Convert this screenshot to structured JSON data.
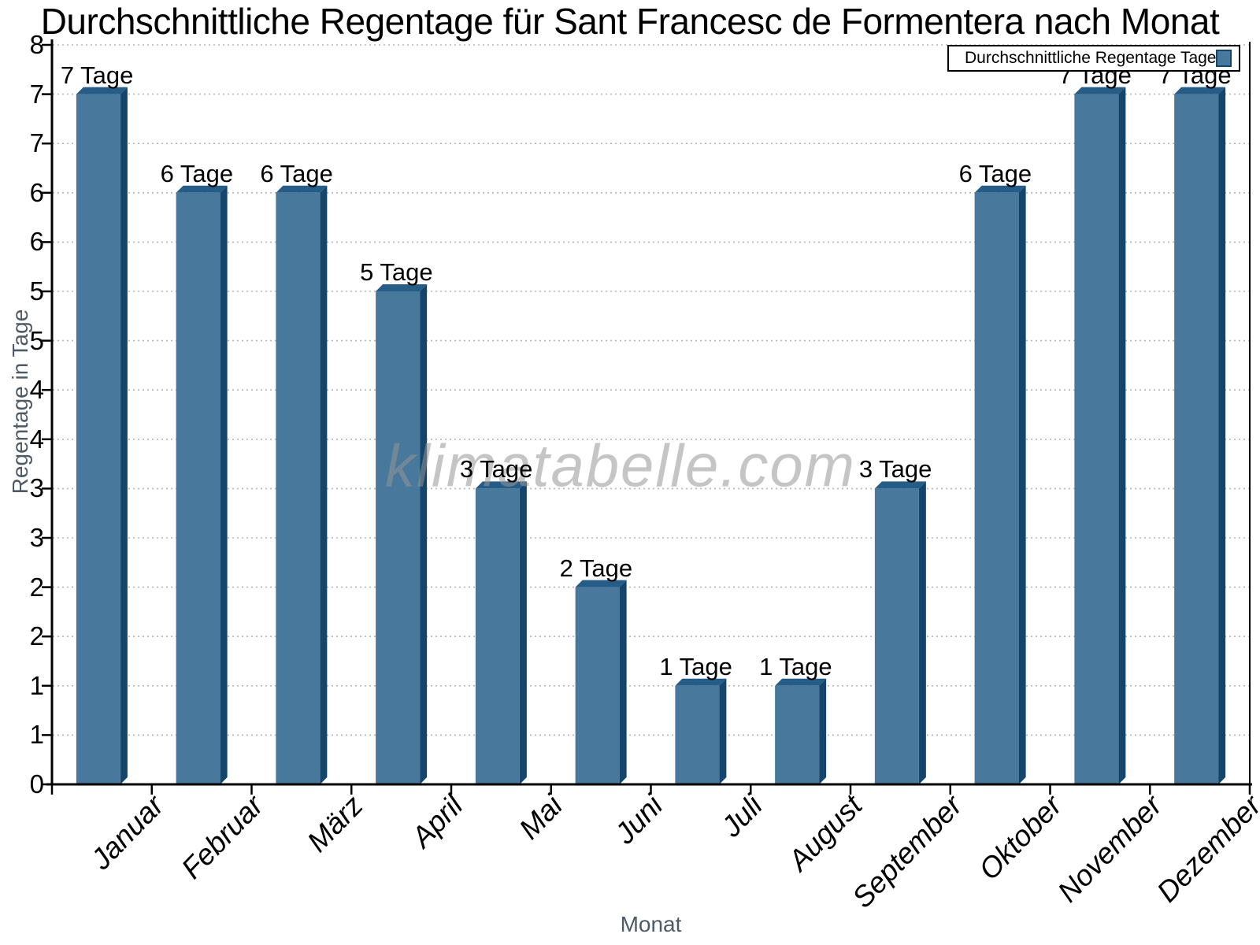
{
  "title": "Durchschnittliche Regentage für Sant Francesc de Formentera nach Monat",
  "watermark": "klimatabelle.com",
  "legend": {
    "label": "Durchschnittliche Regentage Tage"
  },
  "y_axis": {
    "title": "Regentage in Tage",
    "tick_labels": [
      "8",
      "7",
      "7",
      "6",
      "6",
      "5",
      "5",
      "4",
      "4",
      "3",
      "3",
      "2",
      "2",
      "1",
      "1",
      "0"
    ]
  },
  "x_axis": {
    "title": "Monat"
  },
  "chart_data": {
    "type": "bar",
    "title": "Durchschnittliche Regentage für Sant Francesc de Formentera nach Monat",
    "categories": [
      "Januar",
      "Februar",
      "März",
      "April",
      "Mai",
      "Juni",
      "Juli",
      "August",
      "September",
      "Oktober",
      "November",
      "Dezember"
    ],
    "values": [
      7,
      6,
      6,
      5,
      3,
      2,
      1,
      1,
      3,
      6,
      7,
      7
    ],
    "bar_labels": [
      "7 Tage",
      "6 Tage",
      "6 Tage",
      "5 Tage",
      "3 Tage",
      "2 Tage",
      "1 Tage",
      "1 Tage",
      "3 Tage",
      "6 Tage",
      "7 Tage",
      "7 Tage"
    ],
    "series": [
      {
        "name": "Durchschnittliche Regentage Tage",
        "values": [
          7,
          6,
          6,
          5,
          3,
          2,
          1,
          1,
          3,
          6,
          7,
          7
        ]
      }
    ],
    "xlabel": "Monat",
    "ylabel": "Regentage in Tage",
    "ylim": [
      0,
      7.5
    ],
    "y_tick_interval": 0.5,
    "y_tick_labels_rounded": true,
    "grid": "horizontal-dotted",
    "legend_position": "top-right",
    "colors": {
      "bar_face": "#48799c",
      "bar_top": "#265d87",
      "bar_side": "#16456b",
      "grid": "#b5b5b5",
      "axis": "#000000",
      "muted_text": "#4e5a64",
      "watermark": "#c8c8c8"
    }
  }
}
